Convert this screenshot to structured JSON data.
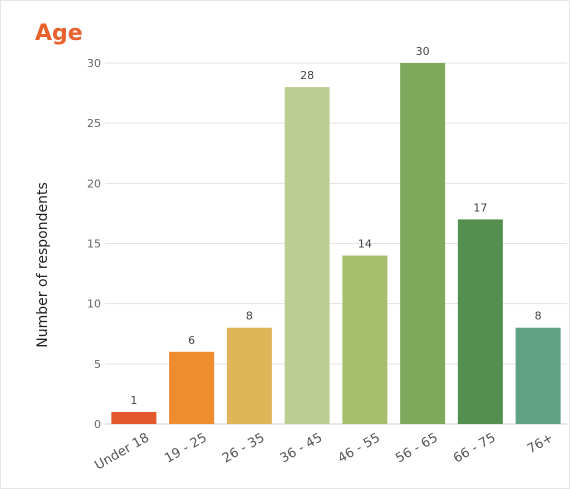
{
  "chart_data": {
    "type": "bar",
    "title": "Age",
    "ylabel": "Number of respondents",
    "xlabel": "",
    "categories": [
      "Under 18",
      "19 - 25",
      "26 - 35",
      "36 - 45",
      "46 - 55",
      "56 - 65",
      "66 - 75",
      "76+"
    ],
    "values": [
      1,
      6,
      8,
      28,
      14,
      30,
      17,
      8
    ],
    "colors": [
      "#e2572b",
      "#ed8d2f",
      "#dfb558",
      "#bccd94",
      "#a6bf6c",
      "#7faa5e",
      "#558f50",
      "#61a186"
    ],
    "ylim": [
      0,
      30
    ],
    "yticks": [
      0,
      5,
      10,
      15,
      20,
      25,
      30
    ],
    "grid": true,
    "legend": "none",
    "data_labels": true
  }
}
